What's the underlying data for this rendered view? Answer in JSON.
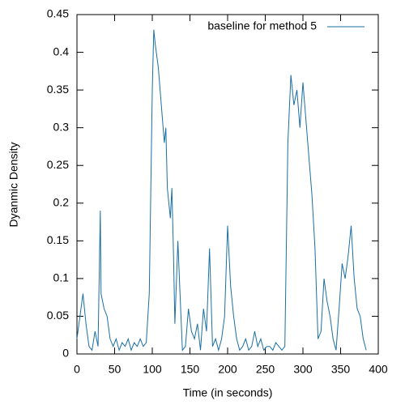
{
  "chart_data": {
    "type": "line",
    "x_label": "Time (in seconds)",
    "y_label": "Dyanmic Density",
    "x": [
      0,
      4,
      8,
      12,
      16,
      20,
      24,
      28,
      31,
      32,
      36,
      40,
      44,
      48,
      52,
      56,
      60,
      64,
      68,
      72,
      76,
      80,
      84,
      88,
      92,
      96,
      100,
      102,
      104,
      108,
      112,
      116,
      118,
      120,
      124,
      126,
      128,
      130,
      134,
      136,
      140,
      144,
      148,
      152,
      156,
      160,
      164,
      168,
      172,
      176,
      180,
      184,
      188,
      192,
      196,
      200,
      204,
      208,
      212,
      216,
      220,
      224,
      228,
      232,
      236,
      240,
      244,
      248,
      252,
      256,
      260,
      264,
      268,
      272,
      276,
      280,
      284,
      288,
      292,
      296,
      300,
      304,
      308,
      312,
      316,
      320,
      324,
      328,
      332,
      336,
      340,
      344,
      348,
      352,
      356,
      360,
      364,
      368,
      372,
      376,
      380,
      384
    ],
    "series": [
      {
        "name": "baseline for method 5",
        "color": "#1a6fa3",
        "values": [
          0.02,
          0.05,
          0.08,
          0.04,
          0.01,
          0.005,
          0.03,
          0.01,
          0.19,
          0.08,
          0.06,
          0.05,
          0.02,
          0.01,
          0.02,
          0.005,
          0.015,
          0.01,
          0.02,
          0.005,
          0.015,
          0.01,
          0.02,
          0.01,
          0.015,
          0.08,
          0.35,
          0.43,
          0.41,
          0.38,
          0.33,
          0.28,
          0.3,
          0.22,
          0.18,
          0.22,
          0.14,
          0.04,
          0.15,
          0.1,
          0.005,
          0.01,
          0.06,
          0.03,
          0.02,
          0.04,
          0.005,
          0.06,
          0.03,
          0.14,
          0.01,
          0.02,
          0.005,
          0.02,
          0.05,
          0.17,
          0.09,
          0.05,
          0.02,
          0.005,
          0.01,
          0.02,
          0.005,
          0.01,
          0.03,
          0.01,
          0.02,
          0.005,
          0.01,
          0.01,
          0.005,
          0.015,
          0.01,
          0.005,
          0.01,
          0.28,
          0.37,
          0.33,
          0.35,
          0.3,
          0.36,
          0.31,
          0.26,
          0.21,
          0.14,
          0.02,
          0.03,
          0.1,
          0.07,
          0.05,
          0.02,
          0.005,
          0.06,
          0.12,
          0.1,
          0.13,
          0.17,
          0.1,
          0.06,
          0.05,
          0.02,
          0.005
        ]
      }
    ],
    "xlim": [
      0,
      400
    ],
    "xticks": [
      0,
      50,
      100,
      150,
      200,
      250,
      300,
      350,
      400
    ],
    "ylim": [
      0,
      0.45
    ],
    "yticks": [
      0,
      0.05,
      0.1,
      0.15,
      0.2,
      0.25,
      0.3,
      0.35,
      0.4,
      0.45
    ],
    "legend": "top-right"
  }
}
